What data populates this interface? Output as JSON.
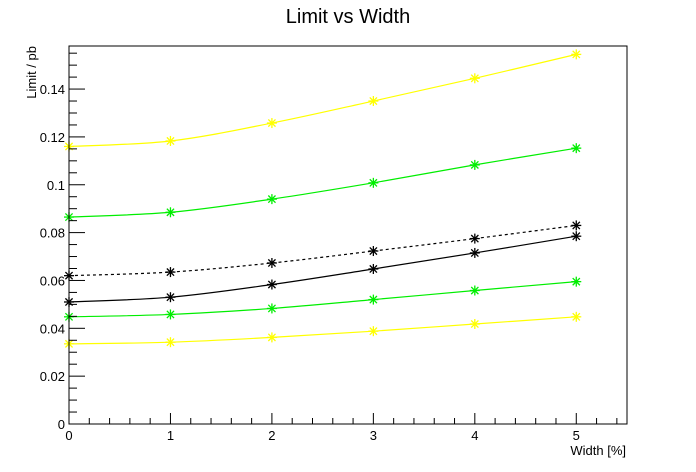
{
  "chart_data": {
    "type": "line",
    "title": "Limit vs Width",
    "xlabel": "Width [%]",
    "ylabel": "Limit / pb",
    "xlim": [
      0,
      5.5
    ],
    "ylim": [
      0,
      0.158
    ],
    "xticks": [
      0,
      1,
      2,
      3,
      4,
      5
    ],
    "xtick_labels": [
      "0",
      "1",
      "2",
      "3",
      "4",
      "5"
    ],
    "yticks": [
      0,
      0.02,
      0.04,
      0.06,
      0.08,
      0.1,
      0.12,
      0.14
    ],
    "ytick_labels": [
      "0",
      "0.02",
      "0.04",
      "0.06",
      "0.08",
      "0.1",
      "0.12",
      "0.14"
    ],
    "grid": false,
    "x": [
      0,
      1,
      2,
      3,
      4,
      5
    ],
    "series": [
      {
        "values": [
          0.116,
          0.1183,
          0.1258,
          0.135,
          0.1445,
          0.1545
        ],
        "color": "#ffff00",
        "style": "solid"
      },
      {
        "values": [
          0.0865,
          0.0885,
          0.094,
          0.1008,
          0.1083,
          0.1153
        ],
        "color": "#00ee00",
        "style": "solid"
      },
      {
        "values": [
          0.062,
          0.0635,
          0.0673,
          0.0723,
          0.0775,
          0.083
        ],
        "color": "#000000",
        "style": "dashed"
      },
      {
        "values": [
          0.051,
          0.053,
          0.0583,
          0.0648,
          0.0715,
          0.0785
        ],
        "color": "#000000",
        "style": "solid"
      },
      {
        "values": [
          0.0448,
          0.0458,
          0.0483,
          0.052,
          0.0558,
          0.0595
        ],
        "color": "#00ee00",
        "style": "solid"
      },
      {
        "values": [
          0.0335,
          0.0342,
          0.0362,
          0.0388,
          0.0418,
          0.0448
        ],
        "color": "#ffff00",
        "style": "solid"
      }
    ]
  }
}
